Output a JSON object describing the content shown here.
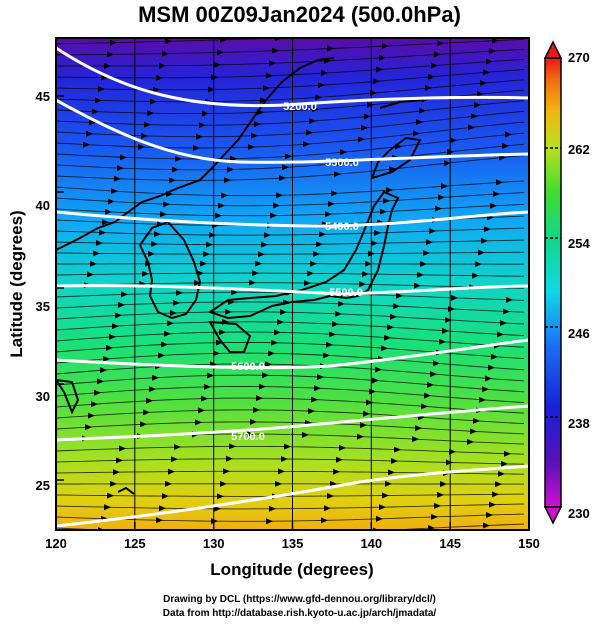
{
  "title": "MSM 00Z09Jan2024 (500.0hPa)",
  "x_axis": {
    "label": "Longitude (degrees)",
    "range": [
      120,
      150
    ],
    "ticks": [
      "120",
      "125",
      "130",
      "135",
      "140",
      "145",
      "150"
    ]
  },
  "y_axis": {
    "label": "Latitude  (degrees)",
    "range": [
      22.4,
      47.6
    ],
    "ticks": [
      "25",
      "30",
      "35",
      "40",
      "45"
    ]
  },
  "colorbar": {
    "min": 230,
    "max": 270,
    "ticks": [
      "230",
      "238",
      "246",
      "254",
      "262",
      "270"
    ],
    "extend": "both",
    "units_hint": "temperature (K)"
  },
  "contours": {
    "labels": [
      "5200.0",
      "5300.0",
      "5400.0",
      "5500.0",
      "5600.0",
      "5700.0"
    ],
    "color": "#ffffff"
  },
  "colors": {
    "streamline": "#000000",
    "coastline": "#000000",
    "contour": "#ffffff"
  },
  "credits": [
    "Drawing by DCL (https://www.gfd-dennou.org/library/dcl/)",
    "Data from http://database.rish.kyoto-u.ac.jp/arch/jmadata/"
  ]
}
